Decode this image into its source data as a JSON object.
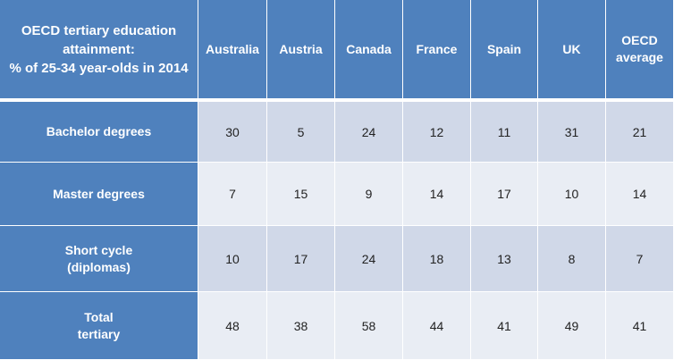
{
  "chart_data": {
    "type": "table",
    "title": "OECD tertiary education attainment:\n% of 25-34 year-olds in 2014",
    "columns": [
      "Australia",
      "Austria",
      "Canada",
      "France",
      "Spain",
      "UK",
      "OECD\naverage"
    ],
    "rows": [
      {
        "label": "Bachelor degrees",
        "values": [
          "30",
          "5",
          "24",
          "12",
          "11",
          "31",
          "21"
        ]
      },
      {
        "label": "Master  degrees",
        "values": [
          "7",
          "15",
          "9",
          "14",
          "17",
          "10",
          "14"
        ]
      },
      {
        "label": "Short cycle\n(diplomas)",
        "values": [
          "10",
          "17",
          "24",
          "18",
          "13",
          "8",
          "7"
        ]
      },
      {
        "label": "Total\ntertiary",
        "values": [
          "48",
          "38",
          "58",
          "44",
          "41",
          "49",
          "41"
        ]
      }
    ]
  },
  "colors": {
    "header_bg": "#4f81bd",
    "row_odd_bg": "#d0d8e8",
    "row_even_bg": "#e9edf4",
    "header_text": "#ffffff"
  }
}
